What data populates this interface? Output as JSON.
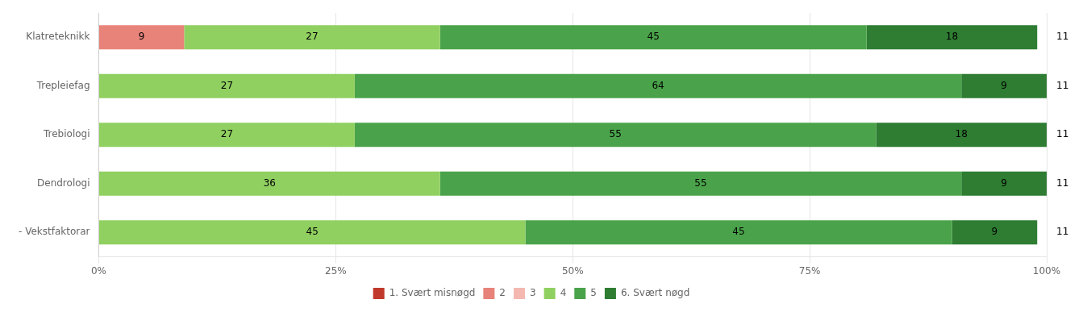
{
  "chart_data": {
    "type": "bar",
    "orientation": "horizontal",
    "stacked": true,
    "categories": [
      "Klatreteknikk",
      "Trepleiefag",
      "Trebiologi",
      "Dendrologi",
      "- Vekstfaktorar"
    ],
    "series": [
      {
        "name": "1. Svært misnøgd",
        "color": "#c0392b",
        "values": [
          0,
          0,
          0,
          0,
          0
        ]
      },
      {
        "name": "2",
        "color": "#e8837a",
        "values": [
          9,
          0,
          0,
          0,
          0
        ]
      },
      {
        "name": "3",
        "color": "#f4b8b0",
        "values": [
          0,
          0,
          0,
          0,
          0
        ]
      },
      {
        "name": "4",
        "color": "#90d060",
        "values": [
          27,
          27,
          27,
          36,
          45
        ]
      },
      {
        "name": "5",
        "color": "#4aa34a",
        "values": [
          45,
          64,
          55,
          55,
          45
        ]
      },
      {
        "name": "6. Svært nøgd",
        "color": "#2e7d32",
        "values": [
          18,
          9,
          18,
          9,
          9
        ]
      }
    ],
    "counts": [
      11,
      11,
      11,
      11,
      11
    ],
    "xlim": [
      0,
      100
    ],
    "xticks": [
      {
        "value": 0,
        "label": "0%"
      },
      {
        "value": 25,
        "label": "25%"
      },
      {
        "value": 50,
        "label": "50%"
      },
      {
        "value": 75,
        "label": "75%"
      },
      {
        "value": 100,
        "label": "100%"
      }
    ],
    "grid": true,
    "legend": "bottom",
    "data_labels": true
  }
}
